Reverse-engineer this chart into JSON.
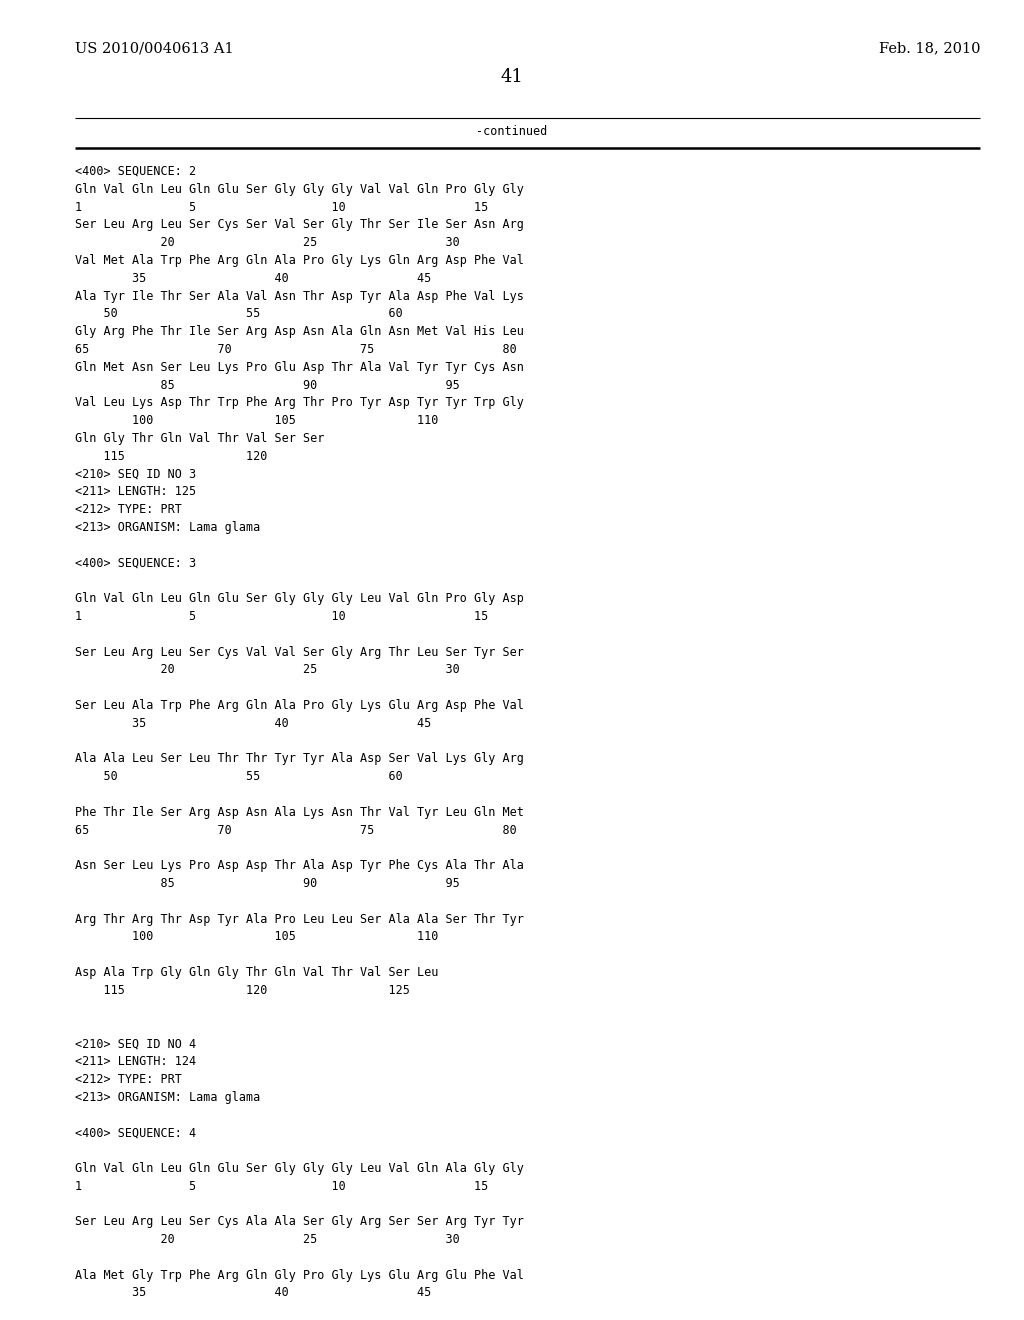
{
  "header_left": "US 2010/0040613 A1",
  "header_right": "Feb. 18, 2010",
  "page_number": "41",
  "continued_label": "-continued",
  "background_color": "#ffffff",
  "text_color": "#000000",
  "font_size_header": 10.5,
  "font_size_body": 8.5,
  "font_size_page": 13,
  "lines": [
    {
      "text": "<400> SEQUENCE: 2",
      "indent": 0,
      "blank_before": 1
    },
    {
      "text": "Gln Val Gln Leu Gln Glu Ser Gly Gly Gly Val Val Gln Pro Gly Gly",
      "indent": 0,
      "blank_before": 1
    },
    {
      "text": "1               5                   10                  15",
      "indent": 0,
      "blank_before": 0
    },
    {
      "text": "Ser Leu Arg Leu Ser Cys Ser Val Ser Gly Thr Ser Ile Ser Asn Arg",
      "indent": 0,
      "blank_before": 1
    },
    {
      "text": "            20                  25                  30",
      "indent": 0,
      "blank_before": 0
    },
    {
      "text": "Val Met Ala Trp Phe Arg Gln Ala Pro Gly Lys Gln Arg Asp Phe Val",
      "indent": 0,
      "blank_before": 1
    },
    {
      "text": "        35                  40                  45",
      "indent": 0,
      "blank_before": 0
    },
    {
      "text": "Ala Tyr Ile Thr Ser Ala Val Asn Thr Asp Tyr Ala Asp Phe Val Lys",
      "indent": 0,
      "blank_before": 1
    },
    {
      "text": "    50                  55                  60",
      "indent": 0,
      "blank_before": 0
    },
    {
      "text": "Gly Arg Phe Thr Ile Ser Arg Asp Asn Ala Gln Asn Met Val His Leu",
      "indent": 0,
      "blank_before": 1
    },
    {
      "text": "65                  70                  75                  80",
      "indent": 0,
      "blank_before": 0
    },
    {
      "text": "Gln Met Asn Ser Leu Lys Pro Glu Asp Thr Ala Val Tyr Tyr Cys Asn",
      "indent": 0,
      "blank_before": 1
    },
    {
      "text": "            85                  90                  95",
      "indent": 0,
      "blank_before": 0
    },
    {
      "text": "Val Leu Lys Asp Thr Trp Phe Arg Thr Pro Tyr Asp Tyr Tyr Trp Gly",
      "indent": 0,
      "blank_before": 1
    },
    {
      "text": "        100                 105                 110",
      "indent": 0,
      "blank_before": 0
    },
    {
      "text": "Gln Gly Thr Gln Val Thr Val Ser Ser",
      "indent": 0,
      "blank_before": 1
    },
    {
      "text": "    115                 120",
      "indent": 0,
      "blank_before": 0
    },
    {
      "text": "<210> SEQ ID NO 3",
      "indent": 0,
      "blank_before": 2
    },
    {
      "text": "<211> LENGTH: 125",
      "indent": 0,
      "blank_before": 0
    },
    {
      "text": "<212> TYPE: PRT",
      "indent": 0,
      "blank_before": 0
    },
    {
      "text": "<213> ORGANISM: Lama glama",
      "indent": 0,
      "blank_before": 0
    },
    {
      "text": "",
      "indent": 0,
      "blank_before": 0
    },
    {
      "text": "<400> SEQUENCE: 3",
      "indent": 0,
      "blank_before": 0
    },
    {
      "text": "",
      "indent": 0,
      "blank_before": 0
    },
    {
      "text": "Gln Val Gln Leu Gln Glu Ser Gly Gly Gly Leu Val Gln Pro Gly Asp",
      "indent": 0,
      "blank_before": 0
    },
    {
      "text": "1               5                   10                  15",
      "indent": 0,
      "blank_before": 0
    },
    {
      "text": "",
      "indent": 0,
      "blank_before": 0
    },
    {
      "text": "Ser Leu Arg Leu Ser Cys Val Val Ser Gly Arg Thr Leu Ser Tyr Ser",
      "indent": 0,
      "blank_before": 0
    },
    {
      "text": "            20                  25                  30",
      "indent": 0,
      "blank_before": 0
    },
    {
      "text": "",
      "indent": 0,
      "blank_before": 0
    },
    {
      "text": "Ser Leu Ala Trp Phe Arg Gln Ala Pro Gly Lys Glu Arg Asp Phe Val",
      "indent": 0,
      "blank_before": 0
    },
    {
      "text": "        35                  40                  45",
      "indent": 0,
      "blank_before": 0
    },
    {
      "text": "",
      "indent": 0,
      "blank_before": 0
    },
    {
      "text": "Ala Ala Leu Ser Leu Thr Thr Tyr Tyr Ala Asp Ser Val Lys Gly Arg",
      "indent": 0,
      "blank_before": 0
    },
    {
      "text": "    50                  55                  60",
      "indent": 0,
      "blank_before": 0
    },
    {
      "text": "",
      "indent": 0,
      "blank_before": 0
    },
    {
      "text": "Phe Thr Ile Ser Arg Asp Asn Ala Lys Asn Thr Val Tyr Leu Gln Met",
      "indent": 0,
      "blank_before": 0
    },
    {
      "text": "65                  70                  75                  80",
      "indent": 0,
      "blank_before": 0
    },
    {
      "text": "",
      "indent": 0,
      "blank_before": 0
    },
    {
      "text": "Asn Ser Leu Lys Pro Asp Asp Thr Ala Asp Tyr Phe Cys Ala Thr Ala",
      "indent": 0,
      "blank_before": 0
    },
    {
      "text": "            85                  90                  95",
      "indent": 0,
      "blank_before": 0
    },
    {
      "text": "",
      "indent": 0,
      "blank_before": 0
    },
    {
      "text": "Arg Thr Arg Thr Asp Tyr Ala Pro Leu Leu Ser Ala Ala Ser Thr Tyr",
      "indent": 0,
      "blank_before": 0
    },
    {
      "text": "        100                 105                 110",
      "indent": 0,
      "blank_before": 0
    },
    {
      "text": "",
      "indent": 0,
      "blank_before": 0
    },
    {
      "text": "Asp Ala Trp Gly Gln Gly Thr Gln Val Thr Val Ser Leu",
      "indent": 0,
      "blank_before": 0
    },
    {
      "text": "    115                 120                 125",
      "indent": 0,
      "blank_before": 0
    },
    {
      "text": "",
      "indent": 0,
      "blank_before": 0
    },
    {
      "text": "",
      "indent": 0,
      "blank_before": 0
    },
    {
      "text": "<210> SEQ ID NO 4",
      "indent": 0,
      "blank_before": 0
    },
    {
      "text": "<211> LENGTH: 124",
      "indent": 0,
      "blank_before": 0
    },
    {
      "text": "<212> TYPE: PRT",
      "indent": 0,
      "blank_before": 0
    },
    {
      "text": "<213> ORGANISM: Lama glama",
      "indent": 0,
      "blank_before": 0
    },
    {
      "text": "",
      "indent": 0,
      "blank_before": 0
    },
    {
      "text": "<400> SEQUENCE: 4",
      "indent": 0,
      "blank_before": 0
    },
    {
      "text": "",
      "indent": 0,
      "blank_before": 0
    },
    {
      "text": "Gln Val Gln Leu Gln Glu Ser Gly Gly Gly Leu Val Gln Ala Gly Gly",
      "indent": 0,
      "blank_before": 0
    },
    {
      "text": "1               5                   10                  15",
      "indent": 0,
      "blank_before": 0
    },
    {
      "text": "",
      "indent": 0,
      "blank_before": 0
    },
    {
      "text": "Ser Leu Arg Leu Ser Cys Ala Ala Ser Gly Arg Ser Ser Arg Tyr Tyr",
      "indent": 0,
      "blank_before": 0
    },
    {
      "text": "            20                  25                  30",
      "indent": 0,
      "blank_before": 0
    },
    {
      "text": "",
      "indent": 0,
      "blank_before": 0
    },
    {
      "text": "Ala Met Gly Trp Phe Arg Gln Gly Pro Gly Lys Glu Arg Glu Phe Val",
      "indent": 0,
      "blank_before": 0
    },
    {
      "text": "        35                  40                  45",
      "indent": 0,
      "blank_before": 0
    }
  ]
}
